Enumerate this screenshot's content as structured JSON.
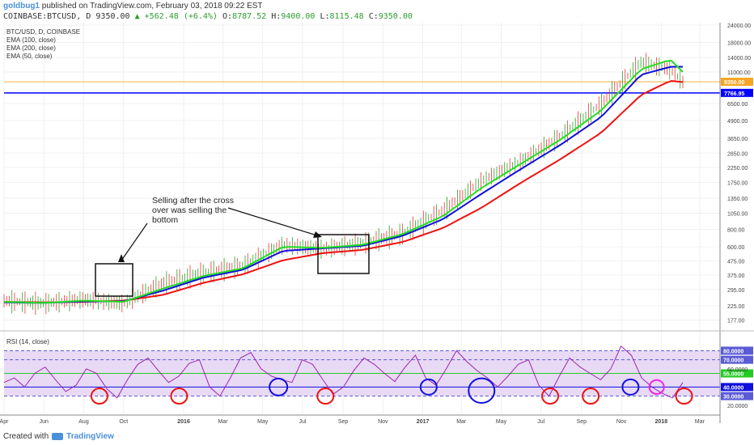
{
  "header": {
    "user": "goldbug1",
    "published": "published on TradingView.com, February 03, 2018 09:22 EST"
  },
  "quote": {
    "symbol": "COINBASE:BTCUSD, D",
    "last": "9350.00",
    "change": "+562.48 (+6.4%)",
    "o_label": "O:",
    "o": "8787.52",
    "h_label": "H:",
    "h": "9400.00",
    "l_label": "L:",
    "l": "8115.48",
    "c_label": "C:",
    "c": "9350.00"
  },
  "legend": {
    "line1": "BTC/USD, D, COINBASE",
    "line2": "EMA (100, close)",
    "line3": "EMA (200, close)",
    "line4": "EMA (50, close)"
  },
  "annotation": {
    "line1": "Selling after the cross",
    "line2": "over was selling the",
    "line3": "bottom"
  },
  "rsi_label": "RSI (14, close)",
  "footer": {
    "created": "Created with",
    "brand": "TradingView"
  },
  "colors": {
    "ema50": "#22dd22",
    "ema100": "#1010dd",
    "ema200": "#ee1111",
    "candle_up": "#2ca02c",
    "candle_down": "#e53935",
    "rsi": "#9c27b0",
    "rsi_band": "#e8d9f5",
    "hline_blue": "#0000ff",
    "hline_orange": "#f5a623",
    "circle_red": "#ee1111",
    "circle_blue": "#1010dd",
    "circle_magenta": "#ee22ee"
  },
  "chart_data": {
    "type": "line",
    "x": [
      "2015-04-01",
      "2015-06-01",
      "2015-08-01",
      "2015-10-01",
      "2015-12-01",
      "2016-02-01",
      "2016-04-01",
      "2016-06-01",
      "2016-08-01",
      "2016-10-01",
      "2016-12-01",
      "2017-02-01",
      "2017-04-01",
      "2017-06-01",
      "2017-08-01",
      "2017-10-01",
      "2017-12-01",
      "2018-01-15",
      "2018-02-03"
    ],
    "x_tick_labels": [
      "Apr",
      "Jun",
      "Aug",
      "Oct",
      "2016",
      "Mar",
      "May",
      "Jul",
      "Sep",
      "Nov",
      "2017",
      "Mar",
      "May",
      "Jul",
      "Sep",
      "Nov",
      "2018",
      "Mar",
      "M"
    ],
    "price_axis": {
      "ticks": [
        24000,
        18000,
        14000,
        11000,
        6500,
        4900,
        3650,
        2850,
        2250,
        1750,
        1350,
        1050,
        800,
        600,
        475,
        375,
        295,
        225,
        177
      ],
      "scale": "log",
      "markers": [
        {
          "label": "9350.00",
          "value": 9350,
          "color": "#f5a623"
        },
        {
          "label": "7766.95",
          "value": 7766.95,
          "color": "#0000ff"
        }
      ]
    },
    "series": [
      {
        "values": [
          245,
          235,
          250,
          235,
          330,
          390,
          440,
          620,
          580,
          640,
          750,
          1100,
          1800,
          2500,
          3800,
          6500,
          13000,
          11500,
          9350
        ]
      },
      {
        "values": [
          240,
          236,
          245,
          240,
          300,
          370,
          420,
          600,
          590,
          620,
          740,
          1000,
          1600,
          2400,
          3600,
          5800,
          11500,
          13500,
          11000
        ]
      },
      {
        "values": [
          238,
          236,
          242,
          242,
          290,
          360,
          410,
          560,
          585,
          610,
          720,
          950,
          1450,
          2200,
          3300,
          5200,
          10500,
          12000,
          12000
        ]
      },
      {
        "values": [
          240,
          238,
          240,
          245,
          270,
          330,
          380,
          480,
          540,
          570,
          650,
          820,
          1150,
          1750,
          2600,
          4000,
          7500,
          9500,
          9300
        ]
      }
    ],
    "rsi": {
      "levels": [
        80,
        70,
        55,
        40,
        30
      ],
      "level_labels": [
        "80.0000",
        "70.0000",
        "55.0000",
        "40.0000",
        "30.0000"
      ],
      "axis_ticks": [
        "80.0000",
        "60.0000",
        "40.0000",
        "20.0000"
      ],
      "values": [
        45,
        50,
        40,
        55,
        62,
        48,
        35,
        42,
        60,
        55,
        38,
        28,
        48,
        65,
        72,
        58,
        45,
        52,
        66,
        70,
        40,
        30,
        50,
        72,
        78,
        60,
        52,
        48,
        45,
        70,
        65,
        48,
        32,
        40,
        58,
        72,
        65,
        55,
        46,
        62,
        75,
        50,
        42,
        60,
        80,
        68,
        58,
        50,
        40,
        52,
        65,
        70,
        42,
        30,
        52,
        72,
        62,
        55,
        48,
        60,
        85,
        75,
        50,
        40,
        33,
        28,
        45
      ]
    }
  }
}
